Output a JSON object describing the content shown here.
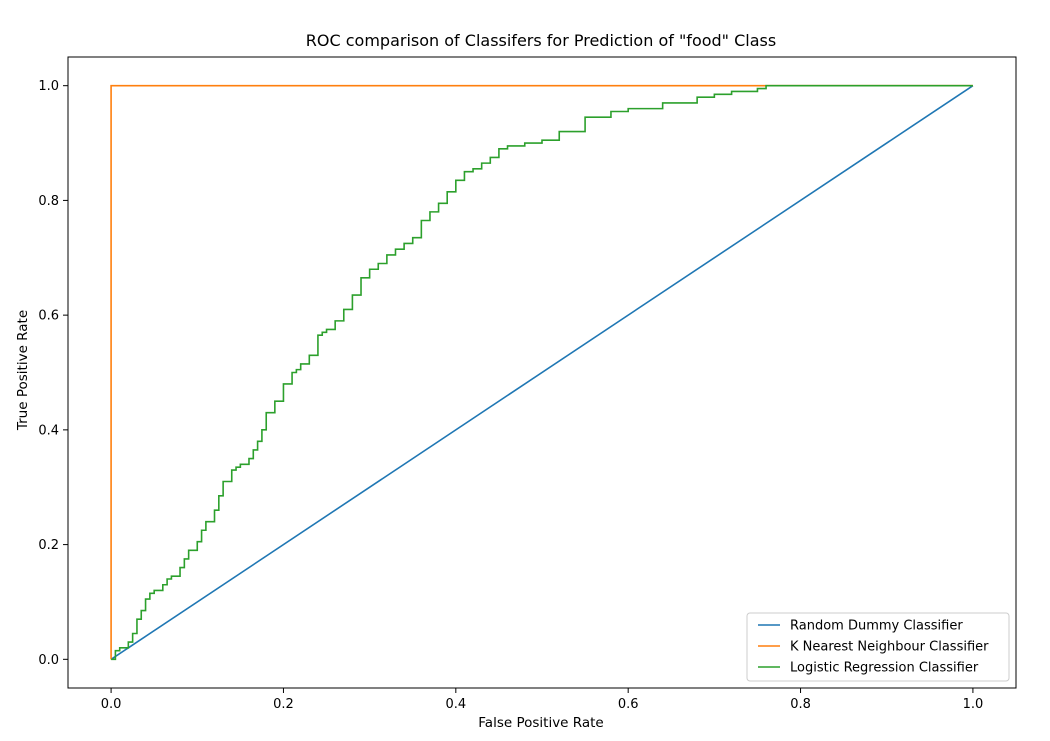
{
  "chart_data": {
    "type": "line",
    "title": "ROC comparison of Classifers for Prediction of \"food\" Class",
    "xlabel": "False Positive Rate",
    "ylabel": "True Positive Rate",
    "xlim": [
      -0.05,
      1.05
    ],
    "ylim": [
      -0.05,
      1.05
    ],
    "xticks": [
      0.0,
      0.2,
      0.4,
      0.6,
      0.8,
      1.0
    ],
    "yticks": [
      0.0,
      0.2,
      0.4,
      0.6,
      0.8,
      1.0
    ],
    "xtick_labels": [
      "0.0",
      "0.2",
      "0.4",
      "0.6",
      "0.8",
      "1.0"
    ],
    "ytick_labels": [
      "0.0",
      "0.2",
      "0.4",
      "0.6",
      "0.8",
      "1.0"
    ],
    "grid": false,
    "legend_position": "bottom-right",
    "series": [
      {
        "name": "Random Dummy Classifier",
        "color": "#1f77b4",
        "x": [
          0.0,
          1.0
        ],
        "y": [
          0.0,
          1.0
        ]
      },
      {
        "name": "K Nearest Neighbour Classifier",
        "color": "#ff7f0e",
        "x": [
          0.0,
          0.0,
          0.757,
          1.0
        ],
        "y": [
          0.0,
          1.0,
          1.0,
          1.0
        ]
      },
      {
        "name": "Logistic Regression Classifier",
        "color": "#2ca02c",
        "x": [
          0.0,
          0.005,
          0.01,
          0.02,
          0.025,
          0.03,
          0.035,
          0.04,
          0.045,
          0.05,
          0.06,
          0.065,
          0.07,
          0.08,
          0.085,
          0.09,
          0.1,
          0.105,
          0.11,
          0.12,
          0.125,
          0.13,
          0.14,
          0.145,
          0.15,
          0.16,
          0.165,
          0.17,
          0.175,
          0.18,
          0.19,
          0.2,
          0.21,
          0.215,
          0.22,
          0.23,
          0.24,
          0.245,
          0.25,
          0.26,
          0.27,
          0.28,
          0.29,
          0.3,
          0.31,
          0.32,
          0.33,
          0.34,
          0.35,
          0.36,
          0.37,
          0.38,
          0.39,
          0.4,
          0.41,
          0.42,
          0.43,
          0.44,
          0.45,
          0.46,
          0.48,
          0.5,
          0.52,
          0.55,
          0.58,
          0.6,
          0.64,
          0.68,
          0.7,
          0.72,
          0.75,
          0.76,
          0.8,
          0.9,
          1.0
        ],
        "y": [
          0.0,
          0.015,
          0.02,
          0.03,
          0.045,
          0.07,
          0.085,
          0.105,
          0.115,
          0.12,
          0.13,
          0.14,
          0.145,
          0.16,
          0.175,
          0.19,
          0.205,
          0.225,
          0.24,
          0.26,
          0.285,
          0.31,
          0.33,
          0.335,
          0.34,
          0.35,
          0.365,
          0.38,
          0.4,
          0.43,
          0.45,
          0.48,
          0.5,
          0.505,
          0.515,
          0.53,
          0.565,
          0.57,
          0.575,
          0.59,
          0.61,
          0.635,
          0.665,
          0.68,
          0.69,
          0.705,
          0.715,
          0.725,
          0.735,
          0.765,
          0.78,
          0.795,
          0.815,
          0.835,
          0.85,
          0.855,
          0.865,
          0.875,
          0.89,
          0.895,
          0.9,
          0.905,
          0.92,
          0.945,
          0.955,
          0.96,
          0.97,
          0.98,
          0.985,
          0.99,
          0.995,
          1.0,
          1.0,
          1.0,
          1.0
        ]
      }
    ]
  }
}
